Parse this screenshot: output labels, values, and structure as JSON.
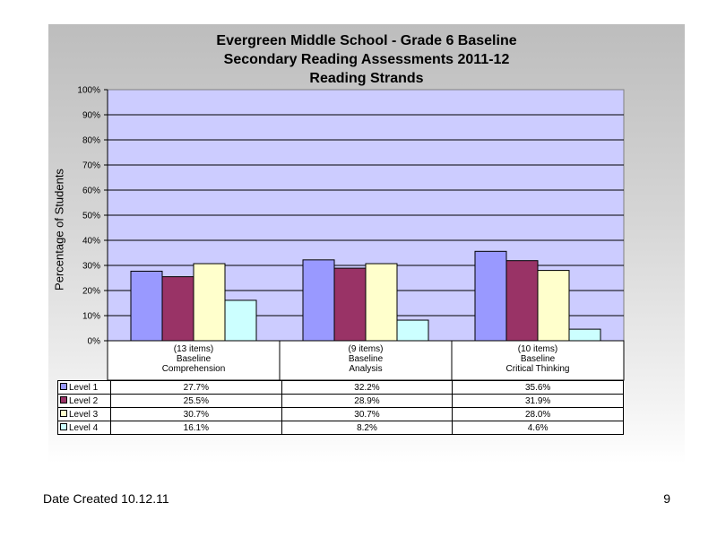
{
  "chart_data": {
    "type": "bar",
    "title_lines": [
      "Evergreen Middle School  - Grade 6 Baseline",
      "Secondary Reading Assessments 2011-12",
      "Reading Strands"
    ],
    "ylabel": "Percentage of Students",
    "ylim": [
      0,
      100
    ],
    "yticks": [
      "0%",
      "10%",
      "20%",
      "30%",
      "40%",
      "50%",
      "60%",
      "70%",
      "80%",
      "90%",
      "100%"
    ],
    "grid": true,
    "categories": [
      [
        "(13 items)",
        "Baseline",
        "Comprehension"
      ],
      [
        "(9 items)",
        "Baseline",
        "Analysis"
      ],
      [
        "(10 items)",
        "Baseline",
        "Critical Thinking"
      ]
    ],
    "series": [
      {
        "name": "Level 1",
        "color": "#9999ff",
        "values": [
          27.7,
          32.2,
          35.6
        ],
        "labels": [
          "27.7%",
          "32.2%",
          "35.6%"
        ]
      },
      {
        "name": "Level 2",
        "color": "#993366",
        "values": [
          25.5,
          28.9,
          31.9
        ],
        "labels": [
          "25.5%",
          "28.9%",
          "31.9%"
        ]
      },
      {
        "name": "Level 3",
        "color": "#ffffcc",
        "values": [
          30.7,
          30.7,
          28.0
        ],
        "labels": [
          "30.7%",
          "30.7%",
          "28.0%"
        ]
      },
      {
        "name": "Level 4",
        "color": "#ccffff",
        "values": [
          16.1,
          8.2,
          4.6
        ],
        "labels": [
          "16.1%",
          "8.2%",
          "4.6%"
        ]
      }
    ],
    "plot_background": "#ccccff",
    "legend_placement": "data-table"
  },
  "footer": {
    "date_created": "Date Created  10.12.11",
    "page_number": "9"
  }
}
